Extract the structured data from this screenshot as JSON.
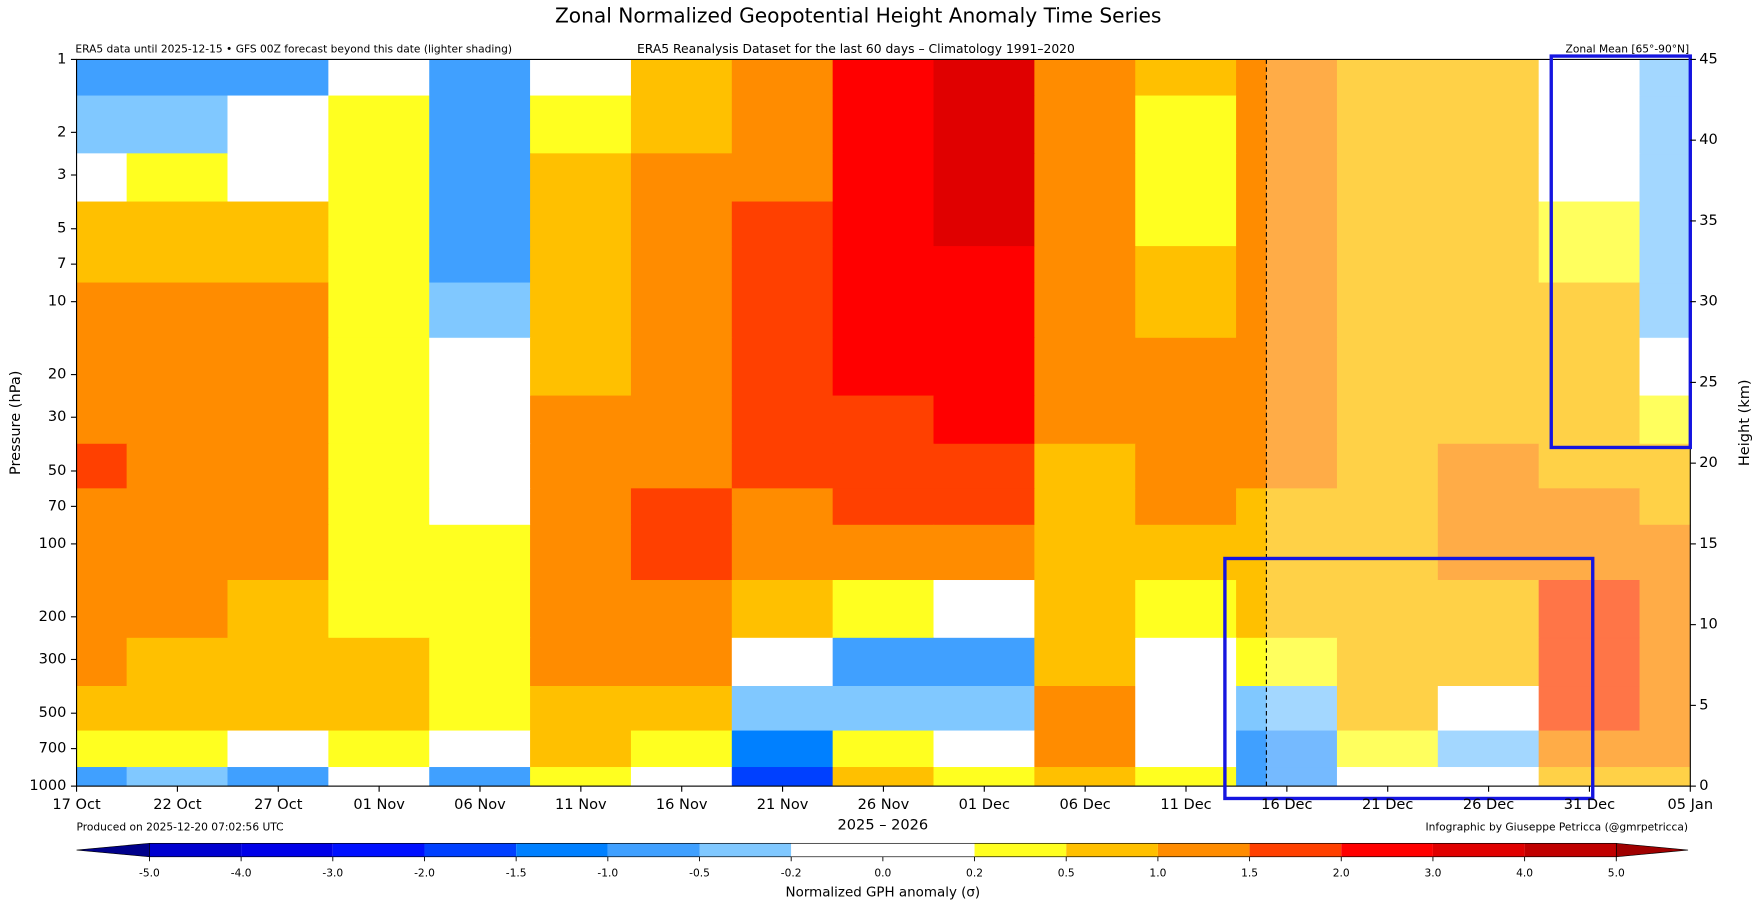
{
  "chart_data": {
    "type": "contour",
    "title": "Zonal Normalized Geopotential Height Anomaly Time Series",
    "note_left": "ERA5 data until 2025-12-15 • GFS 00Z forecast beyond this date (lighter shading)",
    "subtitle": "ERA5 Reanalysis Dataset for the last 60 days – Climatology 1991–2020",
    "note_right": "Zonal Mean [65°-90°N]",
    "footer_left": "Produced on 2025-12-20 07:02:56 UTC",
    "footer_right": "Infographic by Giuseppe Petricca (@gmrpetricca)",
    "xlabel": "2025 – 2026",
    "ylabel": "Pressure (hPa)",
    "y2label": "Height (km)",
    "x": [
      "17 Oct",
      "22 Oct",
      "27 Oct",
      "01 Nov",
      "06 Nov",
      "11 Nov",
      "16 Nov",
      "21 Nov",
      "26 Nov",
      "01 Dec",
      "06 Dec",
      "11 Dec",
      "16 Dec",
      "21 Dec",
      "26 Dec",
      "31 Dec",
      "05 Jan"
    ],
    "y": [
      1,
      2,
      3,
      5,
      7,
      10,
      20,
      30,
      50,
      70,
      100,
      200,
      300,
      500,
      700,
      1000
    ],
    "z": [
      [
        -0.8,
        -0.6,
        -0.7,
        0.1,
        -1.0,
        -0.1,
        0.6,
        1.2,
        2.2,
        3.2,
        1.1,
        0.6,
        1.1,
        0.8,
        0.7,
        0.1,
        -0.4
      ],
      [
        -0.3,
        -0.4,
        -0.1,
        0.3,
        -0.9,
        0.3,
        0.8,
        1.3,
        2.2,
        3.1,
        1.2,
        0.4,
        1.0,
        0.6,
        0.8,
        0.1,
        -0.4
      ],
      [
        0.1,
        0.3,
        0.1,
        0.3,
        -0.8,
        0.5,
        1.0,
        1.4,
        2.1,
        3.0,
        1.2,
        0.4,
        1.0,
        0.6,
        0.8,
        0.1,
        -0.3
      ],
      [
        0.7,
        0.7,
        0.6,
        0.4,
        -0.8,
        0.6,
        1.0,
        1.5,
        2.1,
        3.0,
        1.1,
        0.4,
        1.0,
        0.8,
        0.8,
        0.3,
        -0.3
      ],
      [
        0.8,
        0.9,
        0.8,
        0.4,
        -0.6,
        0.8,
        1.1,
        1.6,
        2.1,
        2.6,
        1.1,
        0.5,
        1.0,
        0.8,
        0.8,
        0.4,
        -0.3
      ],
      [
        1.1,
        1.2,
        1.1,
        0.4,
        -0.5,
        0.8,
        1.2,
        1.6,
        2.1,
        2.3,
        1.1,
        0.8,
        1.1,
        0.7,
        0.7,
        0.6,
        -0.3
      ],
      [
        1.2,
        1.3,
        1.2,
        0.4,
        0.0,
        0.9,
        1.3,
        1.6,
        2.1,
        2.2,
        1.0,
        1.0,
        1.1,
        0.7,
        0.7,
        0.6,
        -0.1
      ],
      [
        1.3,
        1.3,
        1.2,
        0.4,
        0.1,
        1.0,
        1.4,
        1.5,
        1.8,
        2.1,
        1.0,
        1.1,
        1.1,
        0.6,
        0.8,
        0.7,
        0.3
      ],
      [
        1.6,
        1.3,
        1.1,
        0.4,
        0.0,
        1.0,
        1.4,
        1.5,
        1.6,
        1.8,
        0.9,
        1.1,
        1.0,
        0.7,
        1.1,
        0.8,
        0.6
      ],
      [
        1.3,
        1.2,
        1.0,
        0.4,
        0.1,
        1.1,
        1.6,
        1.4,
        1.5,
        1.6,
        0.8,
        1.0,
        0.9,
        0.8,
        1.1,
        1.1,
        0.8
      ],
      [
        1.1,
        1.2,
        1.0,
        0.3,
        0.3,
        1.2,
        1.6,
        1.3,
        1.3,
        1.2,
        0.6,
        0.8,
        0.7,
        0.8,
        1.0,
        1.3,
        1.0
      ],
      [
        1.1,
        1.1,
        0.9,
        0.4,
        0.4,
        1.1,
        1.3,
        0.9,
        0.3,
        0.1,
        0.7,
        0.4,
        0.5,
        0.8,
        0.9,
        1.6,
        1.1
      ],
      [
        1.0,
        0.8,
        0.8,
        0.6,
        0.3,
        1.0,
        1.1,
        0.0,
        -0.6,
        -0.6,
        0.8,
        0.0,
        0.2,
        0.9,
        0.6,
        1.6,
        1.2
      ],
      [
        0.8,
        0.7,
        0.8,
        0.6,
        0.2,
        0.8,
        0.7,
        -0.5,
        -0.3,
        -0.4,
        1.0,
        0.0,
        -0.3,
        0.6,
        0.1,
        1.5,
        1.2
      ],
      [
        0.4,
        0.4,
        0.1,
        0.4,
        0.0,
        0.6,
        0.4,
        -1.2,
        0.4,
        0.0,
        1.1,
        0.1,
        -0.6,
        0.3,
        -0.3,
        1.2,
        1.1
      ],
      [
        -0.8,
        -0.4,
        -0.6,
        0.0,
        -0.6,
        0.4,
        0.1,
        -1.6,
        0.5,
        0.3,
        0.9,
        0.3,
        -0.7,
        0.1,
        0.0,
        0.9,
        0.9
      ]
    ],
    "ylim": [
      1000,
      1
    ],
    "ylog": true,
    "yticks": [
      1,
      2,
      3,
      5,
      7,
      10,
      20,
      30,
      50,
      70,
      100,
      200,
      300,
      500,
      700,
      1000
    ],
    "y2lim": [
      0,
      45
    ],
    "y2ticks": [
      0,
      5,
      10,
      15,
      20,
      25,
      30,
      35,
      40,
      45
    ],
    "colorbar": {
      "label": "Normalized GPH anomaly (σ)",
      "boundaries": [
        {
          "value": -5,
          "label": "-5.0"
        },
        {
          "value": -4,
          "label": "-4.0"
        },
        {
          "value": -3,
          "label": "-3.0"
        },
        {
          "value": -2,
          "label": "-2.0"
        },
        -1.5,
        {
          "value": -1,
          "label": "-1.0"
        },
        -0.5,
        -0.2,
        {
          "value": 0,
          "label": "0.0"
        },
        0.2,
        0.5,
        {
          "value": 1,
          "label": "1.0"
        },
        1.5,
        {
          "value": 2,
          "label": "2.0"
        },
        {
          "value": 3,
          "label": "3.0"
        },
        {
          "value": 4,
          "label": "4.0"
        },
        {
          "value": 5,
          "label": "5.0"
        }
      ],
      "colors": [
        "#0000d0",
        "#0000e8",
        "#0010ff",
        "#0040ff",
        "#0080ff",
        "#40a0ff",
        "#80c8ff",
        "#ffffff",
        "#ffffff",
        "#ffff20",
        "#ffc000",
        "#ff8c00",
        "#ff4000",
        "#ff0000",
        "#e00000",
        "#c00000"
      ],
      "under": "#00008b",
      "over": "#a00000"
    }
  }
}
